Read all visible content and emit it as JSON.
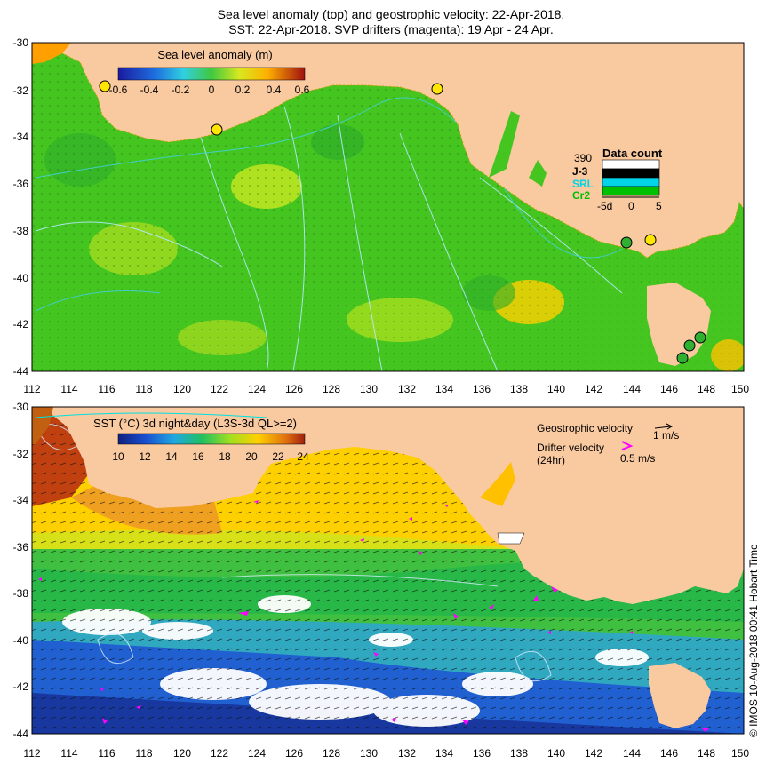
{
  "title": {
    "line1": "Sea level anomaly (top) and geostrophic velocity: 22-Apr-2018.",
    "line2": "SST: 22-Apr-2018. SVP drifters (magenta): 19 Apr - 24 Apr."
  },
  "axes": {
    "lon_ticks": [
      "112",
      "114",
      "116",
      "118",
      "120",
      "122",
      "124",
      "126",
      "128",
      "130",
      "132",
      "134",
      "136",
      "138",
      "140",
      "142",
      "144",
      "146",
      "148",
      "150"
    ],
    "lat_ticks": [
      "-30",
      "-32",
      "-34",
      "-36",
      "-38",
      "-40",
      "-42",
      "-44"
    ]
  },
  "top_panel": {
    "colorbar_title": "Sea level anomaly (m)",
    "colorbar_ticks": [
      "-0.6",
      "-0.4",
      "-0.2",
      "0",
      "0.2",
      "0.4",
      "0.6"
    ],
    "colors": {
      "land": "#f9c9a0",
      "ocean": "#45c51f",
      "high": "#ffe600",
      "contours": "#b4e8ff"
    }
  },
  "data_count": {
    "title": "Data count",
    "missions": [
      "390",
      "J-3",
      "SRL",
      "Cr2"
    ],
    "mission_colors": [
      "#000000",
      "#000000",
      "#00d4e8",
      "#00c000"
    ],
    "axis_labels": [
      "-5d",
      "0",
      "5"
    ]
  },
  "bottom_panel": {
    "colorbar_title": "SST (°C) 3d night&day (L3S-3d QL>=2)",
    "colorbar_ticks": [
      "10",
      "12",
      "14",
      "16",
      "18",
      "20",
      "22",
      "24"
    ],
    "geostrophic_label": "Geostrophic velocity",
    "geostrophic_scale": "1 m/s",
    "drifter_label_1": "Drifter velocity",
    "drifter_label_2": "(24hr)",
    "drifter_scale": "0.5 m/s",
    "drifter_color": "#ff00ff"
  },
  "credit": "© IMOS 10-Aug-2018 00:41 Hobart Time"
}
